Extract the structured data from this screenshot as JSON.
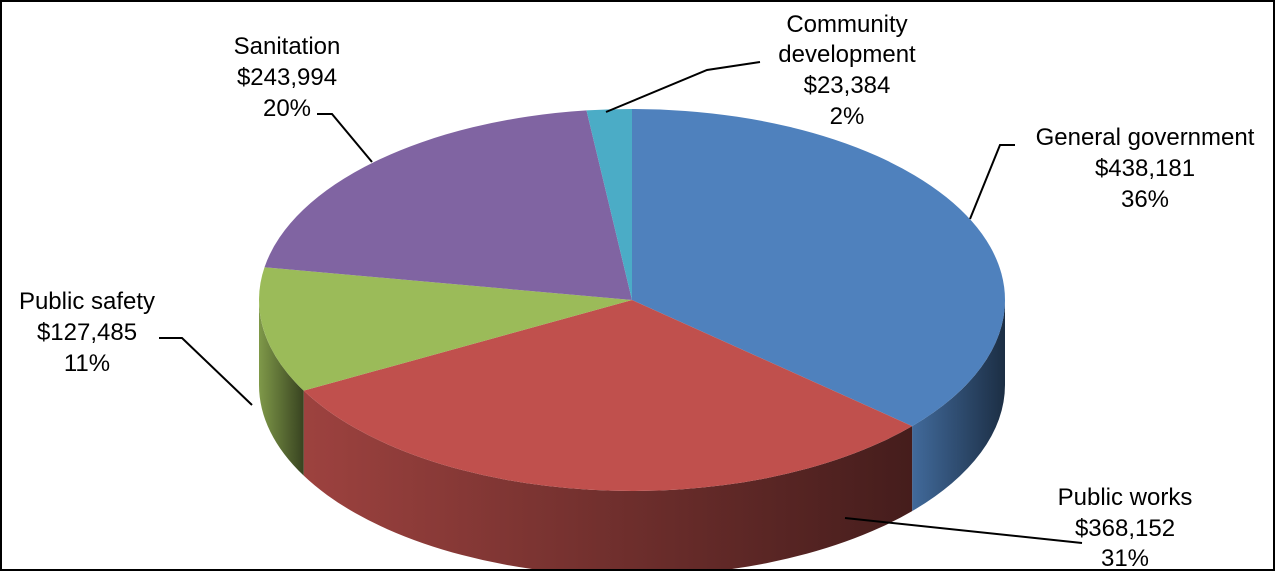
{
  "chart_data": {
    "type": "pie",
    "style": "3d",
    "currency": "$",
    "slices": [
      {
        "label": "General government",
        "value": 438181,
        "percent": 36,
        "color": "#4F81BD",
        "value_text": "$438,181",
        "percent_text": "36%"
      },
      {
        "label": "Public works",
        "value": 368152,
        "percent": 31,
        "color": "#C0504D",
        "value_text": "$368,152",
        "percent_text": "31%"
      },
      {
        "label": "Public safety",
        "value": 127485,
        "percent": 11,
        "color": "#9BBB59",
        "value_text": "$127,485",
        "percent_text": "11%"
      },
      {
        "label": "Sanitation",
        "value": 243994,
        "percent": 20,
        "color": "#8064A2",
        "value_text": "$243,994",
        "percent_text": "20%"
      },
      {
        "label": "Community development",
        "value": 23384,
        "percent": 2,
        "color": "#4BACC6",
        "value_text": "$23,384",
        "percent_text": "2%"
      }
    ]
  }
}
